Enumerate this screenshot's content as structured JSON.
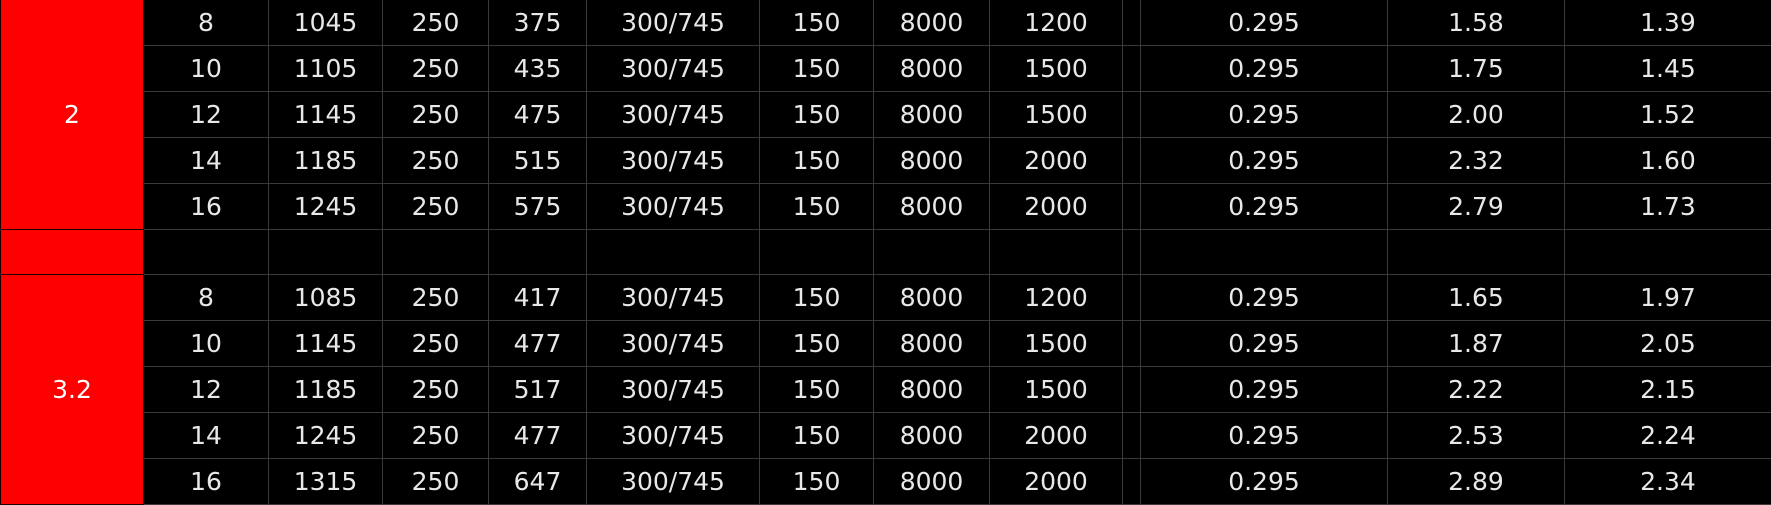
{
  "table": {
    "groups": [
      {
        "label": "2",
        "rows": [
          [
            "8",
            "1045",
            "250",
            "375",
            "300/745",
            "150",
            "8000",
            "1200",
            "0.295",
            "1.58",
            "1.39"
          ],
          [
            "10",
            "1105",
            "250",
            "435",
            "300/745",
            "150",
            "8000",
            "1500",
            "0.295",
            "1.75",
            "1.45"
          ],
          [
            "12",
            "1145",
            "250",
            "475",
            "300/745",
            "150",
            "8000",
            "1500",
            "0.295",
            "2.00",
            "1.52"
          ],
          [
            "14",
            "1185",
            "250",
            "515",
            "300/745",
            "150",
            "8000",
            "2000",
            "0.295",
            "2.32",
            "1.60"
          ],
          [
            "16",
            "1245",
            "250",
            "575",
            "300/745",
            "150",
            "8000",
            "2000",
            "0.295",
            "2.79",
            "1.73"
          ]
        ]
      },
      {
        "label": "3.2",
        "rows": [
          [
            "8",
            "1085",
            "250",
            "417",
            "300/745",
            "150",
            "8000",
            "1200",
            "0.295",
            "1.65",
            "1.97"
          ],
          [
            "10",
            "1145",
            "250",
            "477",
            "300/745",
            "150",
            "8000",
            "1500",
            "0.295",
            "1.87",
            "2.05"
          ],
          [
            "12",
            "1185",
            "250",
            "517",
            "300/745",
            "150",
            "8000",
            "1500",
            "0.295",
            "2.22",
            "2.15"
          ],
          [
            "14",
            "1245",
            "250",
            "477",
            "300/745",
            "150",
            "8000",
            "2000",
            "0.295",
            "2.53",
            "2.24"
          ],
          [
            "16",
            "1315",
            "250",
            "647",
            "300/745",
            "150",
            "8000",
            "2000",
            "0.295",
            "2.89",
            "2.34"
          ]
        ]
      }
    ]
  },
  "colors": {
    "group_background": "#ff0000",
    "page_background": "#000000",
    "text": "#e8e8e8",
    "grid": "#3a3a3a"
  }
}
